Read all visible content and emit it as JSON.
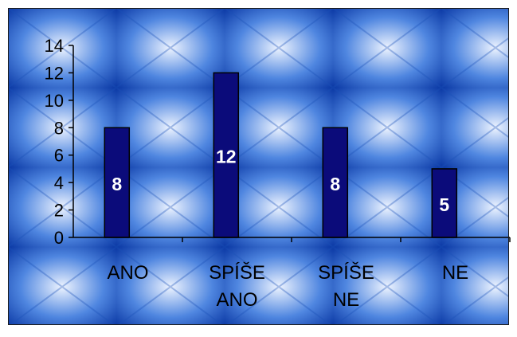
{
  "chart_data": {
    "type": "bar",
    "categories": [
      "ANO",
      "SPÍŠE ANO",
      "SPÍŠE NE",
      "NE"
    ],
    "values": [
      8,
      12,
      8,
      5
    ],
    "title": "",
    "xlabel": "",
    "ylabel": "",
    "ylim": [
      0,
      14
    ],
    "yticks": [
      "0",
      "2",
      "4",
      "6",
      "8",
      "10",
      "12",
      "14"
    ],
    "data_labels": [
      "8",
      "12",
      "8",
      "5"
    ],
    "grid": false,
    "legend": "none"
  },
  "colors": {
    "bar_fill": "#0b0b7a",
    "bar_stroke": "#000000",
    "tile_light": "#eef4ff",
    "tile_mid": "#4f86e0",
    "tile_dark": "#0c3aa6",
    "border": "#1a1a1a",
    "label": "#ffffff"
  }
}
